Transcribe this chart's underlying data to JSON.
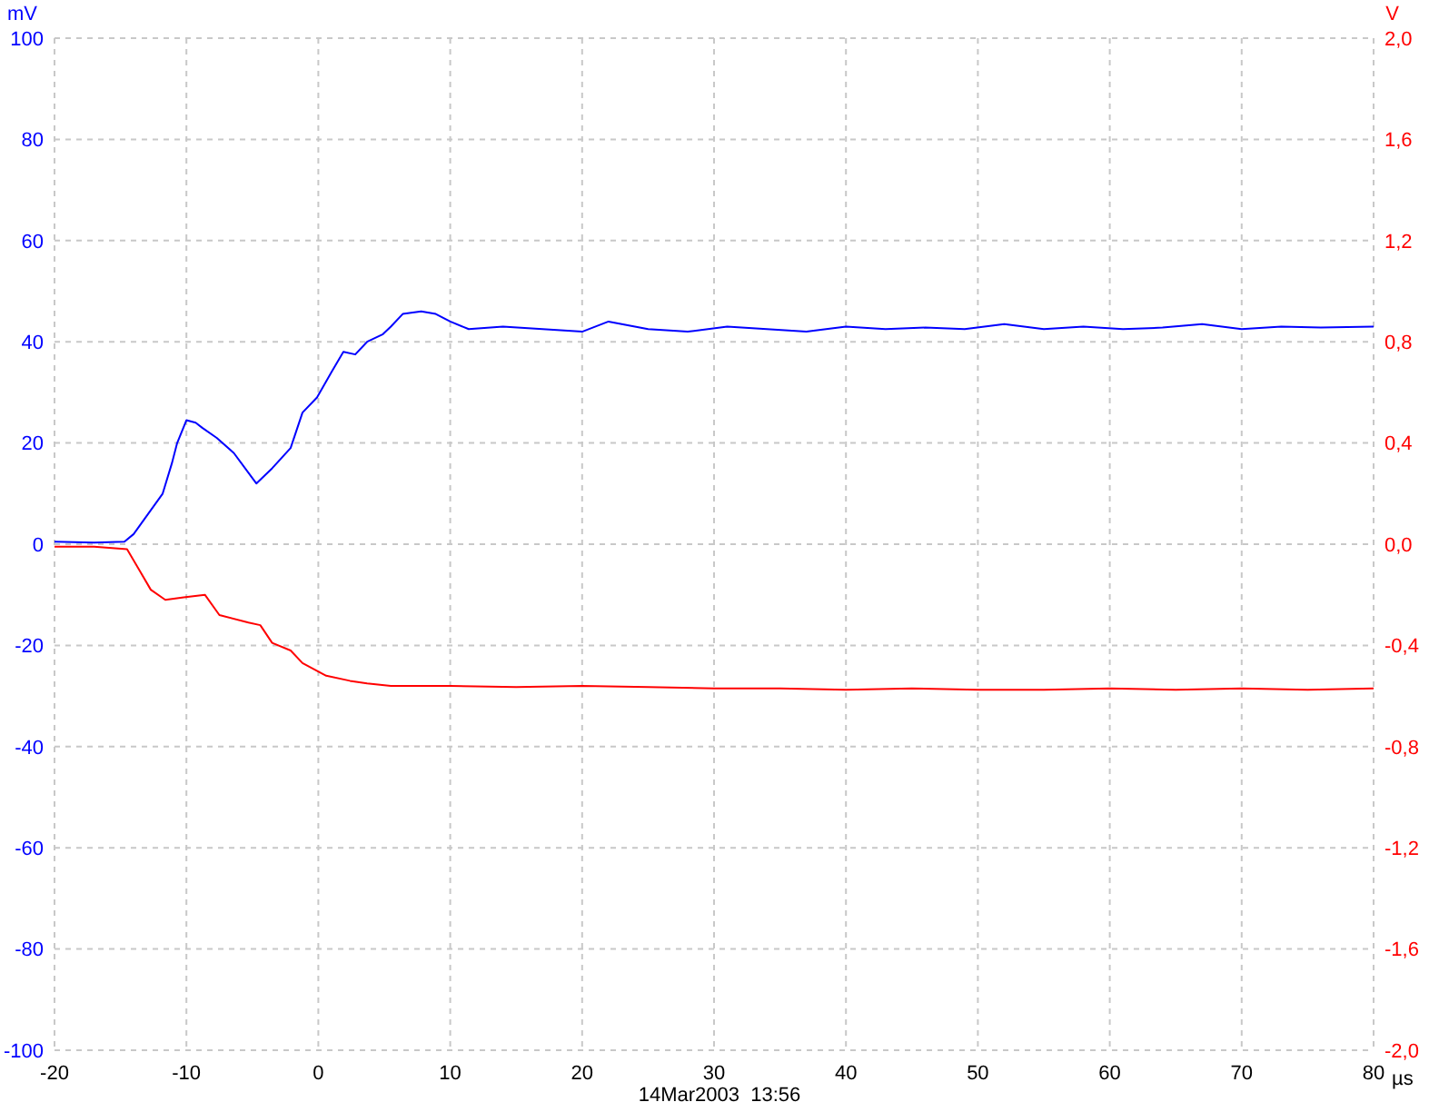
{
  "chart_data": {
    "type": "line",
    "xlabel": "µs",
    "ylabel": "mV",
    "y2label": "V",
    "annotations": [
      "14Mar2003  13:56"
    ],
    "xlim": [
      -20,
      80
    ],
    "xticks": [
      -20,
      -10,
      0,
      10,
      20,
      30,
      40,
      50,
      60,
      70,
      80
    ],
    "ylim": [
      -100,
      100
    ],
    "yticks": [
      -100,
      -80,
      -60,
      -40,
      -20,
      0,
      20,
      40,
      60,
      80,
      100
    ],
    "y2lim": [
      -2,
      2
    ],
    "y2ticks": [
      {
        "value": -2,
        "label": "-2,0"
      },
      {
        "value": -1.6,
        "label": "-1,6"
      },
      {
        "value": -1.2,
        "label": "-1,2"
      },
      {
        "value": -0.8,
        "label": "-0,8"
      },
      {
        "value": -0.4,
        "label": "-0,4"
      },
      {
        "value": 0,
        "label": "0,0"
      },
      {
        "value": 0.4,
        "label": "0,4"
      },
      {
        "value": 0.8,
        "label": "0,8"
      },
      {
        "value": 1.2,
        "label": "1,2"
      },
      {
        "value": 1.6,
        "label": "1,6"
      },
      {
        "value": 2,
        "label": "2,0"
      }
    ],
    "grid": true,
    "legend": false,
    "marker": "none",
    "line_style": "solid",
    "series": [
      {
        "color": "#0000ff",
        "x": [
          -20,
          -17,
          -14.7,
          -14,
          -12.9,
          -11.8,
          -11.1,
          -10.7,
          -10,
          -9.3,
          -8.8,
          -7.7,
          -6.4,
          -4.7,
          -3.5,
          -2.1,
          -1.2,
          -0.1,
          1,
          1.9,
          2.8,
          3.7,
          4.9,
          5.5,
          6.4,
          7.8,
          8.9,
          10,
          11.4,
          14,
          17,
          20,
          22,
          25,
          28,
          31,
          34,
          37,
          40,
          43,
          46,
          49,
          52,
          55,
          58,
          61,
          64,
          67,
          70,
          73,
          76,
          80
        ],
        "values": [
          0.5,
          0.3,
          0.5,
          2,
          6,
          10,
          16,
          20,
          24.5,
          24,
          23,
          21,
          18,
          12,
          15,
          19,
          26,
          29,
          34,
          38,
          37.5,
          40,
          41.5,
          43,
          45.5,
          46,
          45.5,
          44,
          42.5,
          43,
          42.5,
          42,
          44,
          42.5,
          42,
          43,
          42.5,
          42,
          43,
          42.5,
          42.8,
          42.5,
          43.5,
          42.5,
          43,
          42.5,
          42.8,
          43.5,
          42.5,
          43,
          42.8,
          43
        ]
      },
      {
        "color": "#ff0000",
        "axis": "y2",
        "x": [
          -20,
          -17,
          -14.5,
          -13.6,
          -12.7,
          -11.6,
          -10.2,
          -8.6,
          -7.5,
          -5.3,
          -4.4,
          -3.5,
          -2.1,
          -1.2,
          0.6,
          2.4,
          3.7,
          5.5,
          10,
          15,
          20,
          25,
          30,
          35,
          40,
          45,
          50,
          55,
          60,
          65,
          70,
          75,
          80
        ],
        "values": [
          -0.01,
          -0.01,
          -0.02,
          -0.1,
          -0.18,
          -0.22,
          -0.21,
          -0.2,
          -0.28,
          -0.31,
          -0.32,
          -0.39,
          -0.42,
          -0.47,
          -0.52,
          -0.54,
          -0.55,
          -0.56,
          -0.56,
          -0.565,
          -0.56,
          -0.565,
          -0.57,
          -0.57,
          -0.575,
          -0.57,
          -0.575,
          -0.575,
          -0.57,
          -0.575,
          -0.57,
          -0.575,
          -0.57
        ]
      }
    ]
  }
}
